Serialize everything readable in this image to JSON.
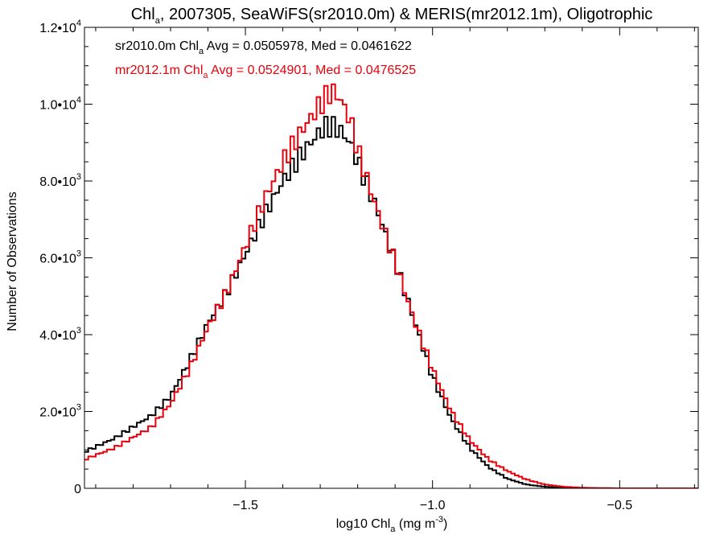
{
  "chart_data": {
    "type": "line",
    "title": "Chl",
    "title_sub": "a",
    "title_rest": ", 2007305, SeaWiFS(sr2010.0m) & MERIS(mr2012.1m), Oligotrophic",
    "xlabel": "log10 Chl",
    "xlabel_sub": "a",
    "xlabel_rest": " (mg m",
    "xlabel_sup": "-3",
    "xlabel_close": ")",
    "ylabel": "Number of Observations",
    "xlim": [
      -1.93,
      -0.29
    ],
    "ylim": [
      0,
      12000
    ],
    "step": 0.01,
    "x_ticks": [
      {
        "value": -1.5,
        "label": "−1.5"
      },
      {
        "value": -1.0,
        "label": "−1.0"
      },
      {
        "value": -0.5,
        "label": "−0.5"
      }
    ],
    "y_ticks": [
      {
        "value": 0,
        "mant": "0",
        "exp": ""
      },
      {
        "value": 2000,
        "mant": "2.0•10",
        "exp": "3"
      },
      {
        "value": 4000,
        "mant": "4.0•10",
        "exp": "3"
      },
      {
        "value": 6000,
        "mant": "6.0•10",
        "exp": "3"
      },
      {
        "value": 8000,
        "mant": "8.0•10",
        "exp": "3"
      },
      {
        "value": 10000,
        "mant": "1.0•10",
        "exp": "4"
      },
      {
        "value": 12000,
        "mant": "1.2•10",
        "exp": "4"
      }
    ],
    "series": [
      {
        "name": "sr2010.0m",
        "color": "#000000",
        "legend": {
          "pre": "sr2010.0m Chl",
          "sub": "a",
          "post": " Avg = 0.0505978, Med = 0.0461622"
        },
        "points": [
          [
            -1.93,
            950
          ],
          [
            -1.85,
            1300
          ],
          [
            -1.75,
            1900
          ],
          [
            -1.7,
            2400
          ],
          [
            -1.65,
            3300
          ],
          [
            -1.6,
            4300
          ],
          [
            -1.55,
            5100
          ],
          [
            -1.5,
            6100
          ],
          [
            -1.45,
            7100
          ],
          [
            -1.4,
            8000
          ],
          [
            -1.35,
            8700
          ],
          [
            -1.3,
            9300
          ],
          [
            -1.28,
            9450
          ],
          [
            -1.25,
            9350
          ],
          [
            -1.22,
            9000
          ],
          [
            -1.2,
            8500
          ],
          [
            -1.15,
            7300
          ],
          [
            -1.1,
            5900
          ],
          [
            -1.05,
            4400
          ],
          [
            -1.0,
            2900
          ],
          [
            -0.95,
            1800
          ],
          [
            -0.9,
            1050
          ],
          [
            -0.85,
            550
          ],
          [
            -0.8,
            250
          ],
          [
            -0.75,
            100
          ],
          [
            -0.7,
            40
          ],
          [
            -0.65,
            15
          ],
          [
            -0.6,
            5
          ],
          [
            -0.5,
            0
          ],
          [
            -0.29,
            0
          ]
        ]
      },
      {
        "name": "mr2012.1m",
        "color": "#e8000b",
        "legend": {
          "pre": "mr2012.1m Chl",
          "sub": "a",
          "post": " Avg = 0.0524901, Med = 0.0476525"
        },
        "points": [
          [
            -1.93,
            750
          ],
          [
            -1.85,
            1050
          ],
          [
            -1.75,
            1600
          ],
          [
            -1.7,
            2200
          ],
          [
            -1.65,
            3100
          ],
          [
            -1.6,
            4200
          ],
          [
            -1.55,
            5100
          ],
          [
            -1.5,
            6300
          ],
          [
            -1.45,
            7500
          ],
          [
            -1.4,
            8500
          ],
          [
            -1.35,
            9300
          ],
          [
            -1.3,
            10000
          ],
          [
            -1.27,
            10350
          ],
          [
            -1.25,
            10200
          ],
          [
            -1.22,
            9600
          ],
          [
            -1.2,
            8800
          ],
          [
            -1.15,
            7300
          ],
          [
            -1.1,
            5900
          ],
          [
            -1.05,
            4400
          ],
          [
            -1.0,
            3100
          ],
          [
            -0.95,
            2000
          ],
          [
            -0.9,
            1250
          ],
          [
            -0.85,
            750
          ],
          [
            -0.8,
            450
          ],
          [
            -0.75,
            230
          ],
          [
            -0.7,
            100
          ],
          [
            -0.65,
            40
          ],
          [
            -0.6,
            15
          ],
          [
            -0.55,
            5
          ],
          [
            -0.5,
            0
          ],
          [
            -0.29,
            0
          ]
        ]
      }
    ]
  }
}
